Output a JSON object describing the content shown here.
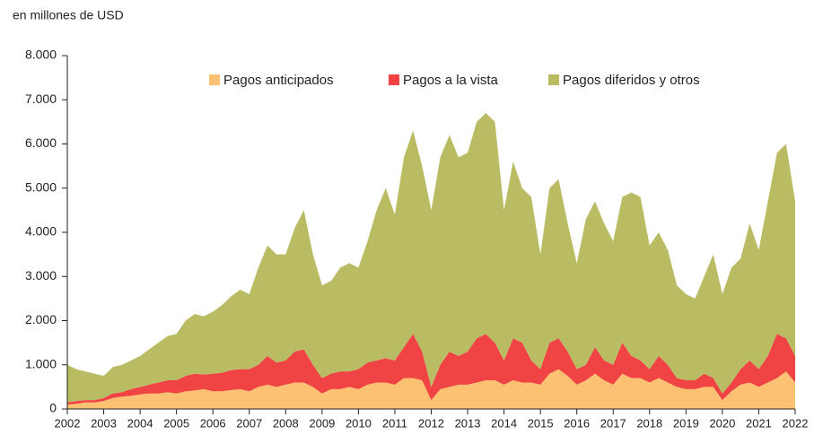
{
  "chart_data": {
    "type": "stacked-area",
    "y_label": "en millones de USD",
    "x": [
      2002,
      2002.25,
      2002.5,
      2002.75,
      2003,
      2003.25,
      2003.5,
      2003.75,
      2004,
      2004.25,
      2004.5,
      2004.75,
      2005,
      2005.25,
      2005.5,
      2005.75,
      2006,
      2006.25,
      2006.5,
      2006.75,
      2007,
      2007.25,
      2007.5,
      2007.75,
      2008,
      2008.25,
      2008.5,
      2008.75,
      2009,
      2009.25,
      2009.5,
      2009.75,
      2010,
      2010.25,
      2010.5,
      2010.75,
      2011,
      2011.25,
      2011.5,
      2011.75,
      2012,
      2012.25,
      2012.5,
      2012.75,
      2013,
      2013.25,
      2013.5,
      2013.75,
      2014,
      2014.25,
      2014.5,
      2014.75,
      2015,
      2015.25,
      2015.5,
      2015.75,
      2016,
      2016.25,
      2016.5,
      2016.75,
      2017,
      2017.25,
      2017.5,
      2017.75,
      2018,
      2018.25,
      2018.5,
      2018.75,
      2019,
      2019.25,
      2019.5,
      2019.75,
      2020,
      2020.25,
      2020.5,
      2020.75,
      2021,
      2021.25,
      2021.5,
      2021.75,
      2022
    ],
    "series": [
      {
        "name": "Pagos anticipados",
        "color": "#fcc172",
        "values": [
          100,
          120,
          150,
          150,
          180,
          250,
          280,
          300,
          330,
          350,
          350,
          380,
          350,
          400,
          420,
          450,
          400,
          400,
          430,
          450,
          400,
          500,
          550,
          500,
          550,
          600,
          600,
          500,
          350,
          450,
          450,
          500,
          450,
          550,
          600,
          600,
          550,
          700,
          700,
          650,
          200,
          450,
          500,
          550,
          550,
          600,
          650,
          650,
          550,
          650,
          600,
          600,
          550,
          800,
          900,
          750,
          550,
          650,
          800,
          650,
          550,
          800,
          700,
          700,
          600,
          700,
          600,
          500,
          450,
          450,
          500,
          500,
          200,
          400,
          550,
          600,
          500,
          600,
          700,
          850,
          600
        ]
      },
      {
        "name": "Pagos a la vista",
        "color": "#f04343",
        "values": [
          50,
          60,
          50,
          50,
          70,
          100,
          100,
          150,
          170,
          200,
          250,
          270,
          300,
          350,
          380,
          330,
          400,
          420,
          450,
          450,
          500,
          500,
          650,
          550,
          550,
          700,
          750,
          500,
          350,
          350,
          400,
          350,
          450,
          500,
          500,
          550,
          550,
          700,
          1000,
          650,
          300,
          550,
          800,
          650,
          750,
          1000,
          1050,
          850,
          550,
          950,
          900,
          500,
          350,
          700,
          700,
          550,
          350,
          350,
          600,
          450,
          450,
          700,
          500,
          400,
          300,
          500,
          400,
          200,
          200,
          200,
          300,
          200,
          150,
          200,
          350,
          500,
          400,
          600,
          1000,
          750,
          600
        ]
      },
      {
        "name": "Pagos diferidos y otros",
        "color": "#b9bc62",
        "values": [
          850,
          720,
          650,
          600,
          500,
          600,
          620,
          650,
          700,
          800,
          900,
          1000,
          1050,
          1250,
          1350,
          1320,
          1400,
          1530,
          1670,
          1800,
          1700,
          2200,
          2500,
          2450,
          2400,
          2800,
          3150,
          2500,
          2100,
          2100,
          2350,
          2450,
          2300,
          2750,
          3400,
          3850,
          3300,
          4300,
          4600,
          4200,
          4000,
          4700,
          4900,
          4500,
          4500,
          4900,
          5000,
          5000,
          3400,
          4000,
          3500,
          3700,
          2600,
          3500,
          3600,
          2900,
          2400,
          3300,
          3300,
          3100,
          2800,
          3300,
          3700,
          3700,
          2800,
          2800,
          2600,
          2100,
          1950,
          1850,
          2200,
          2800,
          2250,
          2600,
          2500,
          3100,
          2700,
          3500,
          4100,
          4400,
          3500
        ]
      }
    ],
    "xlim": [
      2002,
      2022
    ],
    "xticks": [
      2002,
      2003,
      2004,
      2005,
      2006,
      2007,
      2008,
      2009,
      2010,
      2011,
      2012,
      2013,
      2014,
      2015,
      2016,
      2017,
      2018,
      2019,
      2020,
      2021,
      2022
    ],
    "ylim": [
      0,
      8000
    ],
    "yticks": [
      0,
      {
        "value": 1000,
        "label": "1.000"
      },
      {
        "value": 2000,
        "label": "2.000"
      },
      {
        "value": 3000,
        "label": "3.000"
      },
      {
        "value": 4000,
        "label": "4.000"
      },
      {
        "value": 5000,
        "label": "5.000"
      },
      {
        "value": 6000,
        "label": "6.000"
      },
      {
        "value": 7000,
        "label": "7.000"
      },
      {
        "value": 8000,
        "label": "8.000"
      }
    ],
    "legend": "top"
  }
}
